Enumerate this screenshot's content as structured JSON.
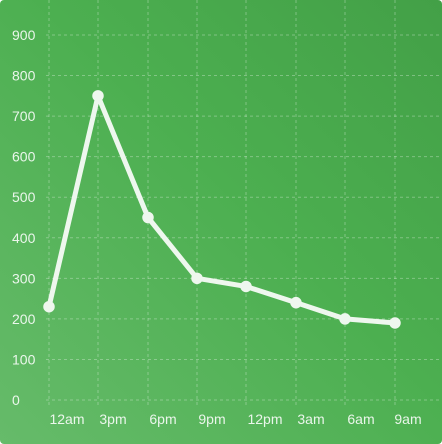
{
  "chart_data": {
    "type": "line",
    "title": "",
    "xlabel": "",
    "ylabel": "",
    "categories": [
      "12am",
      "3pm",
      "6pm",
      "9pm",
      "12pm",
      "3am",
      "6am",
      "9am"
    ],
    "values": [
      230,
      750,
      450,
      300,
      280,
      240,
      200,
      190
    ],
    "yticks": [
      "0",
      "100",
      "200",
      "300",
      "400",
      "500",
      "600",
      "700",
      "800",
      "900"
    ],
    "ylim": [
      0,
      900
    ],
    "grid": true,
    "legend": "none",
    "colors": {
      "background": "#4caf50",
      "line": "#eef7ee",
      "grid": "rgba(255,255,255,0.30)"
    }
  }
}
